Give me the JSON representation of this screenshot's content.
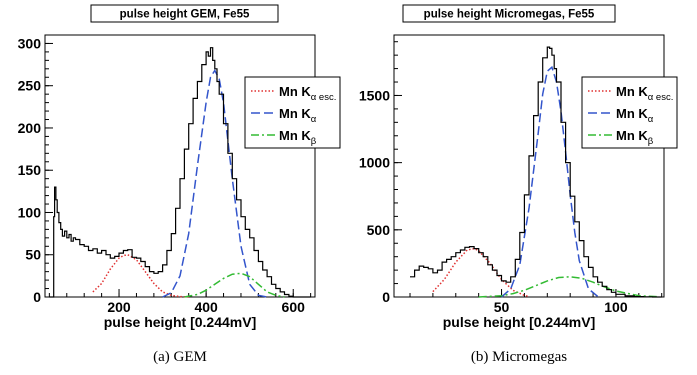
{
  "chart_data": [
    {
      "type": "line",
      "title": "pulse height GEM, Fe55",
      "xlabel": "pulse height [0.244mV]",
      "ylabel": "",
      "caption": "(a) GEM",
      "xlim": [
        30,
        650
      ],
      "ylim": [
        0,
        310
      ],
      "xticks": [
        200,
        400,
        600
      ],
      "yticks": [
        0,
        50,
        100,
        150,
        200,
        250,
        300
      ],
      "grid": false,
      "legend_position": "top-right",
      "histogram": {
        "x": [
          40,
          48,
          50,
          52,
          55,
          58,
          62,
          66,
          70,
          75,
          80,
          85,
          90,
          95,
          100,
          110,
          120,
          130,
          140,
          150,
          160,
          170,
          180,
          190,
          200,
          210,
          220,
          230,
          240,
          250,
          260,
          270,
          280,
          290,
          300,
          310,
          320,
          330,
          340,
          350,
          360,
          370,
          380,
          390,
          400,
          405,
          410,
          415,
          420,
          425,
          430,
          440,
          450,
          460,
          470,
          480,
          490,
          500,
          510,
          520,
          530,
          540,
          550,
          560,
          570,
          580,
          590,
          600,
          620,
          640
        ],
        "y": [
          0,
          0,
          95,
          130,
          115,
          100,
          88,
          80,
          72,
          78,
          70,
          74,
          66,
          70,
          68,
          62,
          60,
          55,
          57,
          52,
          55,
          50,
          46,
          48,
          52,
          55,
          56,
          47,
          46,
          42,
          36,
          30,
          28,
          30,
          38,
          55,
          75,
          105,
          140,
          175,
          205,
          235,
          255,
          275,
          290,
          285,
          295,
          280,
          270,
          255,
          240,
          205,
          170,
          140,
          115,
          95,
          80,
          70,
          55,
          42,
          32,
          24,
          15,
          10,
          6,
          3,
          1,
          0,
          0,
          0
        ]
      },
      "series": [
        {
          "name": "Mn K_α esc.",
          "style": "dotted",
          "color": "#e03030",
          "x": [
            140,
            160,
            180,
            200,
            210,
            220,
            240,
            260,
            280,
            300,
            320,
            340,
            360
          ],
          "y": [
            6,
            16,
            33,
            46,
            49,
            50,
            44,
            30,
            16,
            6,
            2,
            0.5,
            0
          ]
        },
        {
          "name": "Mn K_α",
          "style": "dashed",
          "color": "#3355cc",
          "x": [
            300,
            320,
            340,
            360,
            380,
            400,
            410,
            420,
            430,
            440,
            460,
            480,
            500,
            520,
            540
          ],
          "y": [
            0,
            5,
            25,
            75,
            155,
            230,
            260,
            268,
            258,
            230,
            140,
            60,
            15,
            2,
            0
          ]
        },
        {
          "name": "Mn K_β",
          "style": "dash-dot",
          "color": "#33bb33",
          "x": [
            350,
            380,
            400,
            420,
            440,
            460,
            480,
            500,
            520,
            540,
            560,
            580
          ],
          "y": [
            0,
            3,
            8,
            15,
            22,
            27,
            28,
            24,
            15,
            6,
            2,
            0
          ]
        }
      ],
      "legend": {
        "entries": [
          {
            "base": "Mn K",
            "sub": "α esc."
          },
          {
            "base": "Mn K",
            "sub": "α"
          },
          {
            "base": "Mn K",
            "sub": "β"
          }
        ]
      }
    },
    {
      "type": "line",
      "title": "pulse height Micromegas, Fe55",
      "xlabel": "pulse height [0.244mV]",
      "ylabel": "",
      "caption": "(b) Micromegas",
      "xlim": [
        3,
        121
      ],
      "ylim": [
        0,
        1950
      ],
      "xticks": [
        50,
        100
      ],
      "yticks": [
        0,
        500,
        1000,
        1500
      ],
      "grid": false,
      "legend_position": "top-right",
      "histogram": {
        "x": [
          10,
          12,
          14,
          16,
          18,
          20,
          22,
          24,
          26,
          28,
          30,
          32,
          34,
          36,
          38,
          40,
          42,
          44,
          46,
          48,
          50,
          52,
          54,
          56,
          58,
          60,
          62,
          64,
          66,
          68,
          70,
          71,
          72,
          73,
          74,
          76,
          78,
          80,
          82,
          84,
          86,
          88,
          90,
          92,
          94,
          96,
          98,
          100,
          104,
          108,
          112,
          116,
          120
        ],
        "y": [
          150,
          200,
          230,
          220,
          210,
          180,
          200,
          260,
          280,
          300,
          330,
          350,
          370,
          375,
          360,
          330,
          300,
          240,
          200,
          160,
          120,
          110,
          150,
          280,
          480,
          760,
          1050,
          1350,
          1600,
          1780,
          1860,
          1850,
          1800,
          1700,
          1600,
          1300,
          1000,
          750,
          560,
          420,
          300,
          220,
          150,
          110,
          80,
          55,
          35,
          20,
          8,
          3,
          1,
          0,
          0
        ]
      },
      "series": [
        {
          "name": "Mn K_α esc.",
          "style": "dotted",
          "color": "#e03030",
          "x": [
            20,
            25,
            30,
            35,
            38,
            40,
            45,
            50,
            55,
            60,
            62
          ],
          "y": [
            40,
            130,
            260,
            350,
            360,
            345,
            250,
            130,
            50,
            12,
            3
          ]
        },
        {
          "name": "Mn K_α",
          "style": "dashed",
          "color": "#3355cc",
          "x": [
            50,
            54,
            58,
            62,
            66,
            68,
            70,
            72,
            74,
            76,
            78,
            80,
            82,
            84,
            88,
            92
          ],
          "y": [
            0,
            60,
            240,
            660,
            1220,
            1510,
            1680,
            1710,
            1600,
            1380,
            1080,
            760,
            480,
            270,
            60,
            5
          ]
        },
        {
          "name": "Mn K_β",
          "style": "dash-dot",
          "color": "#33bb33",
          "x": [
            40,
            50,
            55,
            60,
            65,
            70,
            75,
            80,
            85,
            90,
            95,
            100,
            110,
            118
          ],
          "y": [
            0,
            10,
            25,
            50,
            85,
            120,
            145,
            150,
            140,
            110,
            75,
            45,
            10,
            2
          ]
        }
      ],
      "legend": {
        "entries": [
          {
            "base": "Mn K",
            "sub": "α esc."
          },
          {
            "base": "Mn K",
            "sub": "α"
          },
          {
            "base": "Mn K",
            "sub": "β"
          }
        ]
      }
    }
  ]
}
